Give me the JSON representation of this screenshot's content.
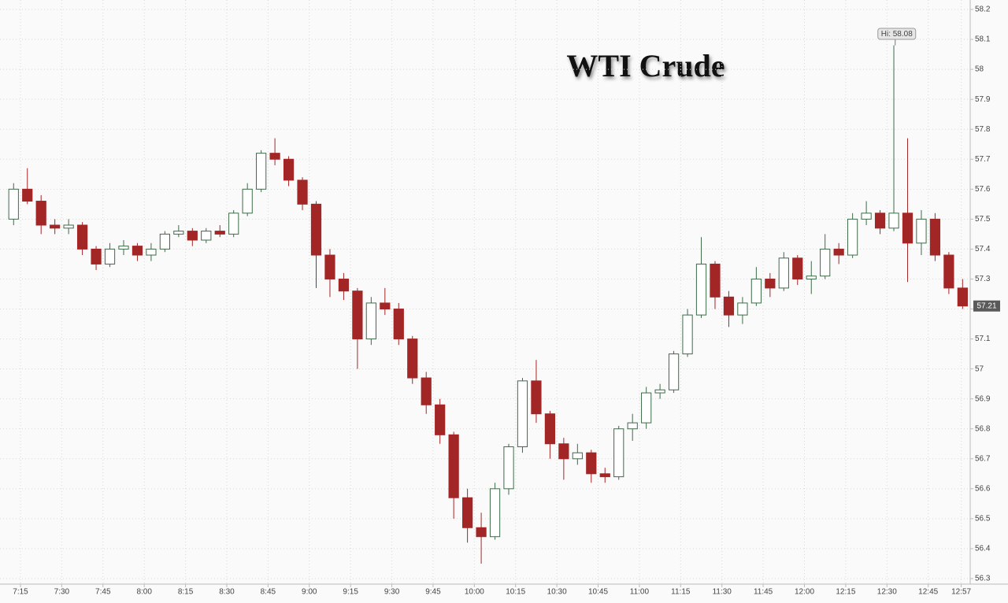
{
  "chart_data": {
    "type": "candlestick",
    "title": "WTI Crude",
    "x": [
      "7:10",
      "7:15",
      "7:20",
      "7:25",
      "7:30",
      "7:35",
      "7:40",
      "7:45",
      "7:50",
      "7:55",
      "8:00",
      "8:05",
      "8:10",
      "8:15",
      "8:20",
      "8:25",
      "8:30",
      "8:35",
      "8:40",
      "8:45",
      "8:50",
      "8:55",
      "9:00",
      "9:05",
      "9:10",
      "9:15",
      "9:20",
      "9:25",
      "9:30",
      "9:35",
      "9:40",
      "9:45",
      "9:50",
      "9:55",
      "10:00",
      "10:05",
      "10:10",
      "10:15",
      "10:20",
      "10:25",
      "10:30",
      "10:35",
      "10:40",
      "10:45",
      "10:50",
      "10:55",
      "11:00",
      "11:05",
      "11:10",
      "11:15",
      "11:20",
      "11:25",
      "11:30",
      "11:35",
      "11:40",
      "11:45",
      "11:50",
      "11:55",
      "12:00",
      "12:05",
      "12:10",
      "12:15",
      "12:20",
      "12:25",
      "12:30",
      "12:35",
      "12:40",
      "12:45",
      "12:50",
      "12:55"
    ],
    "open": [
      57.5,
      57.6,
      57.56,
      57.48,
      57.47,
      57.48,
      57.4,
      57.35,
      57.4,
      57.41,
      57.38,
      57.4,
      57.45,
      57.46,
      57.43,
      57.46,
      57.45,
      57.52,
      57.6,
      57.72,
      57.7,
      57.63,
      57.55,
      57.38,
      57.3,
      57.26,
      57.1,
      57.22,
      57.2,
      57.1,
      56.97,
      56.88,
      56.78,
      56.57,
      56.47,
      56.44,
      56.6,
      56.74,
      56.96,
      56.85,
      56.75,
      56.7,
      56.72,
      56.65,
      56.64,
      56.8,
      56.82,
      56.92,
      56.93,
      57.05,
      57.18,
      57.35,
      57.24,
      57.18,
      57.22,
      57.3,
      57.27,
      57.37,
      57.3,
      57.31,
      57.4,
      57.38,
      57.5,
      57.52,
      57.47,
      57.52,
      57.42,
      57.5,
      57.38,
      57.27
    ],
    "high": [
      57.62,
      57.67,
      57.58,
      57.5,
      57.5,
      57.49,
      57.41,
      57.42,
      57.43,
      57.42,
      57.42,
      57.46,
      57.48,
      57.47,
      57.47,
      57.48,
      57.53,
      57.62,
      57.73,
      57.77,
      57.71,
      57.64,
      57.56,
      57.4,
      57.32,
      57.27,
      57.24,
      57.27,
      57.22,
      57.11,
      56.99,
      56.9,
      56.79,
      56.6,
      56.52,
      56.62,
      56.75,
      56.97,
      57.03,
      56.86,
      56.77,
      56.75,
      56.73,
      56.67,
      56.81,
      56.85,
      56.94,
      56.95,
      57.06,
      57.2,
      57.44,
      57.36,
      57.26,
      57.24,
      57.34,
      57.32,
      57.39,
      57.38,
      57.36,
      57.45,
      57.42,
      57.52,
      57.56,
      57.53,
      58.08,
      57.77,
      57.53,
      57.52,
      57.39,
      57.3
    ],
    "low": [
      57.48,
      57.55,
      57.45,
      57.45,
      57.45,
      57.38,
      57.33,
      57.34,
      57.38,
      57.36,
      57.36,
      57.39,
      57.44,
      57.41,
      57.42,
      57.44,
      57.44,
      57.51,
      57.59,
      57.68,
      57.61,
      57.53,
      57.27,
      57.24,
      57.23,
      57.0,
      57.08,
      57.18,
      57.08,
      56.95,
      56.85,
      56.75,
      56.5,
      56.42,
      56.35,
      56.43,
      56.58,
      56.72,
      56.82,
      56.7,
      56.63,
      56.68,
      56.62,
      56.62,
      56.63,
      56.76,
      56.8,
      56.9,
      56.92,
      57.04,
      57.17,
      57.2,
      57.14,
      57.15,
      57.21,
      57.24,
      57.26,
      57.28,
      57.25,
      57.3,
      57.35,
      57.37,
      57.48,
      57.45,
      57.46,
      57.29,
      57.38,
      57.36,
      57.25,
      57.2
    ],
    "close": [
      57.6,
      57.56,
      57.48,
      57.47,
      57.48,
      57.4,
      57.35,
      57.4,
      57.41,
      57.38,
      57.4,
      57.45,
      57.46,
      57.43,
      57.46,
      57.45,
      57.52,
      57.6,
      57.72,
      57.7,
      57.63,
      57.55,
      57.38,
      57.3,
      57.26,
      57.1,
      57.22,
      57.2,
      57.1,
      56.97,
      56.88,
      56.78,
      56.57,
      56.47,
      56.44,
      56.6,
      56.74,
      56.96,
      56.85,
      56.75,
      56.7,
      56.72,
      56.65,
      56.64,
      56.8,
      56.82,
      56.92,
      56.93,
      57.05,
      57.18,
      57.35,
      57.24,
      57.18,
      57.22,
      57.3,
      57.27,
      57.37,
      57.3,
      57.31,
      57.4,
      57.38,
      57.5,
      57.52,
      57.47,
      57.52,
      57.42,
      57.5,
      57.38,
      57.27,
      57.21
    ],
    "up_color": "#3d6b48",
    "down_color": "#a32626",
    "ylim": [
      56.3,
      58.2
    ],
    "yticks": [
      56.3,
      56.4,
      56.5,
      56.6,
      56.7,
      56.8,
      56.9,
      57,
      57.1,
      57.2,
      57.3,
      57.4,
      57.5,
      57.6,
      57.7,
      57.8,
      57.9,
      58,
      58.1,
      58.2
    ],
    "xticks": [
      "7:15",
      "7:30",
      "7:45",
      "8:00",
      "8:15",
      "8:30",
      "8:45",
      "9:00",
      "9:15",
      "9:30",
      "9:45",
      "10:00",
      "10:15",
      "10:30",
      "10:45",
      "11:00",
      "11:15",
      "11:30",
      "11:45",
      "12:00",
      "12:15",
      "12:30",
      "12:45",
      "12:57"
    ],
    "grid": true,
    "high_annotation": {
      "text": "Hi: 58.08",
      "value": 58.08,
      "time": "12:33"
    },
    "last_price": 57.21
  }
}
